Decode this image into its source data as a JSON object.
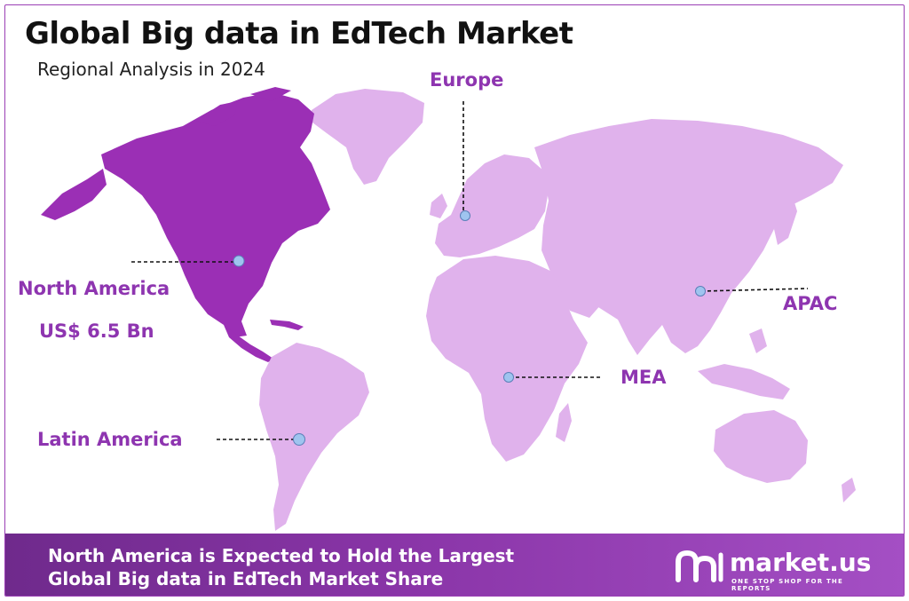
{
  "header": {
    "title": "Global Big data in EdTech Market",
    "subtitle": "Regional Analysis in 2024"
  },
  "regions": {
    "north_america": {
      "label": "North America",
      "value": "US$ 6.5 Bn",
      "highlighted": true
    },
    "europe": {
      "label": "Europe",
      "highlighted": false
    },
    "apac": {
      "label": "APAC",
      "highlighted": false
    },
    "mea": {
      "label": "MEA",
      "highlighted": false
    },
    "latin_america": {
      "label": "Latin America",
      "highlighted": false
    }
  },
  "footer": {
    "line1": "North America is Expected to Hold the Largest",
    "line2": "Global Big data in EdTech Market Share",
    "brand": "market.us",
    "tagline": "ONE STOP SHOP FOR THE REPORTS"
  },
  "colors": {
    "highlight": "#9b2fb5",
    "land": "#e0b2ec",
    "label": "#8e35b0",
    "marker": "#9fc4ef"
  }
}
